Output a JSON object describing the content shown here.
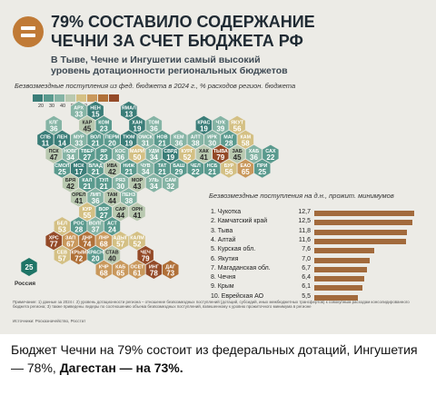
{
  "header": {
    "title_line1": "79% СОСТАВИЛО СОДЕРЖАНИЕ",
    "title_line2": "ЧЕЧНИ ЗА СЧЕТ БЮДЖЕТА РФ",
    "subtitle_line1": "В Тыве, Чечне и Ингушетии самый высокий",
    "subtitle_line2": "уровень дотационности региональных бюджетов"
  },
  "legend": {
    "caption": "Безвозмездные поступления из фед. бюджета в 2024 г., % расходов регион. бюджета",
    "ticks": [
      "20",
      "30",
      "40",
      "50",
      "60",
      "70"
    ],
    "colors": [
      "#3a7d78",
      "#5a9a8e",
      "#85b4a5",
      "#b9c9b0",
      "#d4c084",
      "#c9985c",
      "#b07038",
      "#944a28"
    ]
  },
  "map": {
    "russia_value": "25",
    "russia_label": "Россия",
    "russia_color": "#1f7567",
    "regions": [
      {
        "ab": "АРХ",
        "v": 33,
        "c": 2,
        "r": 0
      },
      {
        "ab": "НЕН",
        "v": 15,
        "c": 3,
        "r": 0
      },
      {
        "ab": "ЯМАЛ",
        "v": 13,
        "c": 5,
        "r": 0
      },
      {
        "ab": "КЛГ",
        "v": 36,
        "c": 0,
        "r": 1
      },
      {
        "ab": "КАР",
        "v": 45,
        "c": 2,
        "r": 1
      },
      {
        "ab": "КОМ",
        "v": 23,
        "c": 3,
        "r": 1
      },
      {
        "ab": "ХАН",
        "v": 19,
        "c": 5,
        "r": 1
      },
      {
        "ab": "ТОМ",
        "v": 36,
        "c": 6,
        "r": 1
      },
      {
        "ab": "КРАС",
        "v": 19,
        "c": 9,
        "r": 1
      },
      {
        "ab": "ЧУК",
        "v": 39,
        "c": 10,
        "r": 1
      },
      {
        "ab": "ЯКУТ",
        "v": 56,
        "c": 11,
        "r": 1
      },
      {
        "ab": "СПБ",
        "v": 11,
        "c": 0,
        "r": 2
      },
      {
        "ab": "ЛЕН",
        "v": 14,
        "c": 1,
        "r": 2
      },
      {
        "ab": "МУР",
        "v": 33,
        "c": 2,
        "r": 2
      },
      {
        "ab": "ВОЛ",
        "v": 21,
        "c": 3,
        "r": 2
      },
      {
        "ab": "ПЕРМ",
        "v": 20,
        "c": 4,
        "r": 2
      },
      {
        "ab": "ТЮМ",
        "v": 19,
        "c": 5,
        "r": 2
      },
      {
        "ab": "ОМСК",
        "v": 31,
        "c": 6,
        "r": 2
      },
      {
        "ab": "НОВ",
        "v": 21,
        "c": 7,
        "r": 2
      },
      {
        "ab": "КЕМ",
        "v": 36,
        "c": 8,
        "r": 2
      },
      {
        "ab": "АЛТ",
        "v": 38,
        "c": 9,
        "r": 2
      },
      {
        "ab": "ИРК",
        "v": 30,
        "c": 10,
        "r": 2
      },
      {
        "ab": "МАГ",
        "v": 28,
        "c": 11,
        "r": 2
      },
      {
        "ab": "КАМ",
        "v": 58,
        "c": 12,
        "r": 2
      },
      {
        "ab": "ПСК",
        "v": 47,
        "c": 0,
        "r": 3
      },
      {
        "ab": "НОВГ",
        "v": 34,
        "c": 1,
        "r": 3
      },
      {
        "ab": "ТВЕР",
        "v": 27,
        "c": 2,
        "r": 3
      },
      {
        "ab": "ЯР",
        "v": 23,
        "c": 3,
        "r": 3
      },
      {
        "ab": "КОС",
        "v": 36,
        "c": 4,
        "r": 3
      },
      {
        "ab": "МАРИ",
        "v": 50,
        "c": 5,
        "r": 3
      },
      {
        "ab": "УДМ",
        "v": 34,
        "c": 6,
        "r": 3
      },
      {
        "ab": "СВРД",
        "v": 19,
        "c": 7,
        "r": 3
      },
      {
        "ab": "КУРГ",
        "v": 52,
        "c": 8,
        "r": 3
      },
      {
        "ab": "ХАК",
        "v": 41,
        "c": 9,
        "r": 3
      },
      {
        "ab": "ТЫВА",
        "v": 79,
        "c": 10,
        "r": 3
      },
      {
        "ab": "ЗАБ",
        "v": 45,
        "c": 11,
        "r": 3
      },
      {
        "ab": "ХАБ",
        "v": 36,
        "c": 12,
        "r": 3
      },
      {
        "ab": "САХ",
        "v": 22,
        "c": 13,
        "r": 3
      },
      {
        "ab": "СМОЛ",
        "v": 25,
        "c": 1,
        "r": 4
      },
      {
        "ab": "МСК",
        "v": 17,
        "c": 2,
        "r": 4
      },
      {
        "ab": "ВЛАД",
        "v": 21,
        "c": 3,
        "r": 4
      },
      {
        "ab": "ИВА",
        "v": 42,
        "c": 4,
        "r": 4
      },
      {
        "ab": "НИЖ",
        "v": 21,
        "c": 5,
        "r": 4
      },
      {
        "ab": "ЧУВ",
        "v": 34,
        "c": 6,
        "r": 4
      },
      {
        "ab": "ТАТ",
        "v": 21,
        "c": 7,
        "r": 4
      },
      {
        "ab": "БАШ",
        "v": 29,
        "c": 8,
        "r": 4
      },
      {
        "ab": "ЧЕЛ",
        "v": 22,
        "c": 9,
        "r": 4
      },
      {
        "ab": "НСБ",
        "v": 21,
        "c": 10,
        "r": 4
      },
      {
        "ab": "БУР",
        "v": 56,
        "c": 11,
        "r": 4
      },
      {
        "ab": "ЕАО",
        "v": 65,
        "c": 12,
        "r": 4
      },
      {
        "ab": "ПРИ",
        "v": 25,
        "c": 13,
        "r": 4
      },
      {
        "ab": "БРЯ",
        "v": 42,
        "c": 1,
        "r": 5
      },
      {
        "ab": "КАЛ",
        "v": 21,
        "c": 2,
        "r": 5
      },
      {
        "ab": "ТУЛ",
        "v": 21,
        "c": 3,
        "r": 5
      },
      {
        "ab": "РЯЗ",
        "v": 30,
        "c": 4,
        "r": 5
      },
      {
        "ab": "МОР",
        "v": 43,
        "c": 5,
        "r": 5
      },
      {
        "ab": "УЛЬ",
        "v": 34,
        "c": 6,
        "r": 5
      },
      {
        "ab": "САМ",
        "v": 32,
        "c": 7,
        "r": 5
      },
      {
        "ab": "ОРЕЛ",
        "v": 41,
        "c": 2,
        "r": 6
      },
      {
        "ab": "ЛИП",
        "v": 36,
        "c": 3,
        "r": 6
      },
      {
        "ab": "ТАМ",
        "v": 44,
        "c": 4,
        "r": 6
      },
      {
        "ab": "ПЕНЗ",
        "v": 38,
        "c": 5,
        "r": 6
      },
      {
        "ab": "КУР",
        "v": 55,
        "c": 2,
        "r": 7
      },
      {
        "ab": "ВОР",
        "v": 27,
        "c": 3,
        "r": 7
      },
      {
        "ab": "САР",
        "v": 44,
        "c": 4,
        "r": 7
      },
      {
        "ab": "ОРН",
        "v": 41,
        "c": 5,
        "r": 7
      },
      {
        "ab": "БЕЛ",
        "v": 53,
        "c": 1,
        "r": 8
      },
      {
        "ab": "РОС",
        "v": 28,
        "c": 2,
        "r": 8
      },
      {
        "ab": "ВОЛГ",
        "v": 37,
        "c": 3,
        "r": 8
      },
      {
        "ab": "АСТ",
        "v": 24,
        "c": 4,
        "r": 8
      },
      {
        "ab": "ХРС",
        "v": 77,
        "c": 0,
        "r": 9
      },
      {
        "ab": "ЗАП",
        "v": 67,
        "c": 1,
        "r": 9
      },
      {
        "ab": "ДНР",
        "v": 74,
        "c": 2,
        "r": 9
      },
      {
        "ab": "ЛНР",
        "v": 68,
        "c": 3,
        "r": 9
      },
      {
        "ab": "АДЫГ",
        "v": 57,
        "c": 4,
        "r": 9
      },
      {
        "ab": "КАЛМ",
        "v": 52,
        "c": 5,
        "r": 9
      },
      {
        "ab": "СЕВ",
        "v": 57,
        "c": 1,
        "r": 10
      },
      {
        "ab": "КРЫМ",
        "v": 72,
        "c": 2,
        "r": 10
      },
      {
        "ab": "КРАСН",
        "v": 20,
        "c": 3,
        "r": 10
      },
      {
        "ab": "СТАВ",
        "v": 40,
        "c": 4,
        "r": 10
      },
      {
        "ab": "ЧЕЧ",
        "v": 79,
        "c": 6,
        "r": 10
      },
      {
        "ab": "КЧР",
        "v": 68,
        "c": 3,
        "r": 11
      },
      {
        "ab": "КАБ",
        "v": 65,
        "c": 4,
        "r": 11
      },
      {
        "ab": "ОСЕТ",
        "v": 61,
        "c": 5,
        "r": 11
      },
      {
        "ab": "ИНГ",
        "v": 78,
        "c": 6,
        "r": 11
      },
      {
        "ab": "ДАГ",
        "v": 73,
        "c": 7,
        "r": 11
      }
    ]
  },
  "ranking": {
    "title_line1": "Безвозмездные поступления на д.н., прожит. минимумов",
    "rows": [
      {
        "name": "1. Чукотка",
        "value": "12,7",
        "num": 12.7
      },
      {
        "name": "2. Камчатский край",
        "value": "12,5",
        "num": 12.5
      },
      {
        "name": "3. Тыва",
        "value": "11,8",
        "num": 11.8
      },
      {
        "name": "4. Алтай",
        "value": "11,6",
        "num": 11.6
      },
      {
        "name": "5. Курская обл.",
        "value": "7,6",
        "num": 7.6
      },
      {
        "name": "6. Якутия",
        "value": "7,0",
        "num": 7.0
      },
      {
        "name": "7. Магаданская обл.",
        "value": "6,7",
        "num": 6.7
      },
      {
        "name": "8. Чечня",
        "value": "6,4",
        "num": 6.4
      },
      {
        "name": "9. Крым",
        "value": "6,1",
        "num": 6.1
      },
      {
        "name": "10. Еврейская АО",
        "value": "5,5",
        "num": 5.5
      }
    ]
  },
  "notes": {
    "text": "Примечание: 1) данные за 2024 г. 2) уровень дотационности региона – отношение безвозмездных поступлений (дотаций, субсидий, иных межбюджетных трансфертов) к совокупным расходам консолидированного бюджета региона; 3) также приведены лидеры по соотношению объема безвозмездных поступлений, взвешенному к уровню прожиточного минимума в регионе",
    "source": "Источники: Росказначейство, Росстат"
  },
  "caption": {
    "part1": "Бюджет Чечни на 79% состоит из федеральных дотаций,",
    "part2": "Ингушетия — 78%, ",
    "part3_bold": "Дагестан — на 73%."
  }
}
